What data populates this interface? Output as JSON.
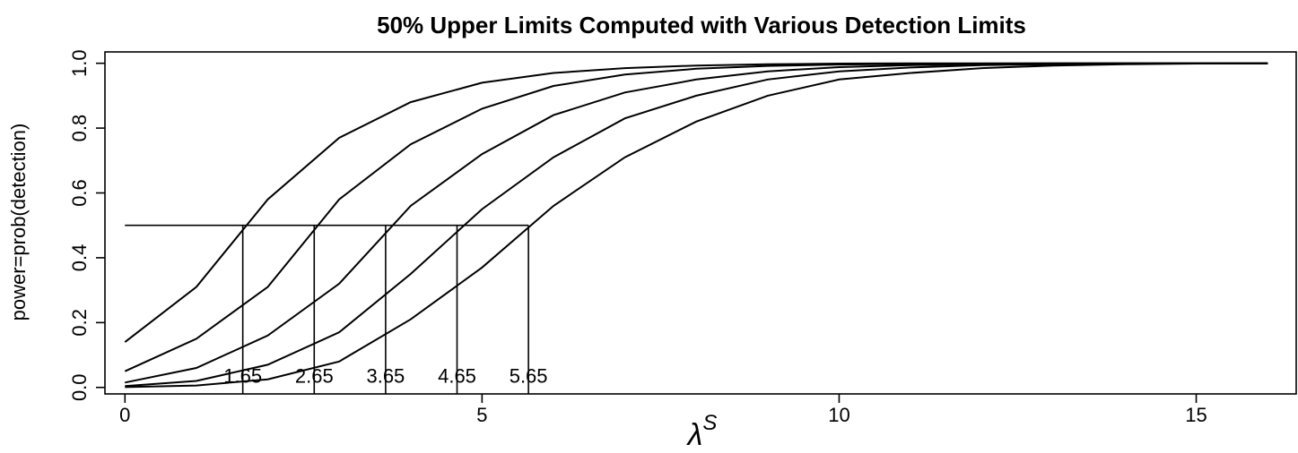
{
  "chart_data": {
    "type": "line",
    "title": "50% Upper Limits Computed with Various Detection Limits",
    "x_label": "λ",
    "x_label_sup": "S",
    "y_label": "power=prob(detection)",
    "x": [
      0,
      1,
      2,
      3,
      4,
      5,
      6,
      7,
      8,
      9,
      10,
      11,
      12,
      13,
      14,
      15,
      16
    ],
    "series": [
      {
        "color": "#000000",
        "values": [
          0.14,
          0.31,
          0.58,
          0.77,
          0.88,
          0.94,
          0.97,
          0.985,
          0.993,
          0.997,
          0.999,
          1,
          1,
          1,
          1,
          1,
          1
        ]
      },
      {
        "color": "#000000",
        "values": [
          0.05,
          0.15,
          0.31,
          0.58,
          0.75,
          0.86,
          0.93,
          0.965,
          0.983,
          0.992,
          0.996,
          0.998,
          0.999,
          1,
          1,
          1,
          1
        ]
      },
      {
        "color": "#000000",
        "values": [
          0.015,
          0.06,
          0.16,
          0.32,
          0.56,
          0.72,
          0.84,
          0.91,
          0.95,
          0.975,
          0.988,
          0.994,
          0.997,
          0.999,
          1,
          1,
          1
        ]
      },
      {
        "color": "#000000",
        "values": [
          0.004,
          0.02,
          0.07,
          0.17,
          0.35,
          0.55,
          0.71,
          0.83,
          0.9,
          0.95,
          0.975,
          0.987,
          0.994,
          0.997,
          0.999,
          1,
          1
        ]
      },
      {
        "color": "#000000",
        "values": [
          0.001,
          0.006,
          0.025,
          0.08,
          0.21,
          0.37,
          0.56,
          0.71,
          0.82,
          0.9,
          0.95,
          0.97,
          0.985,
          0.993,
          0.997,
          0.999,
          1
        ]
      }
    ],
    "detection_limits": [
      1.65,
      2.65,
      3.65,
      4.65,
      5.65
    ],
    "threshold": 0.5,
    "xlim": [
      -0.28,
      16.4
    ],
    "ylim": [
      -0.02,
      1.035
    ],
    "xticks": [
      0,
      5,
      10,
      15
    ],
    "yticks": [
      {
        "value": 0,
        "label": "0.0"
      },
      0.2,
      0.4,
      0.6,
      0.8,
      {
        "value": 1,
        "label": "1.0"
      }
    ]
  }
}
